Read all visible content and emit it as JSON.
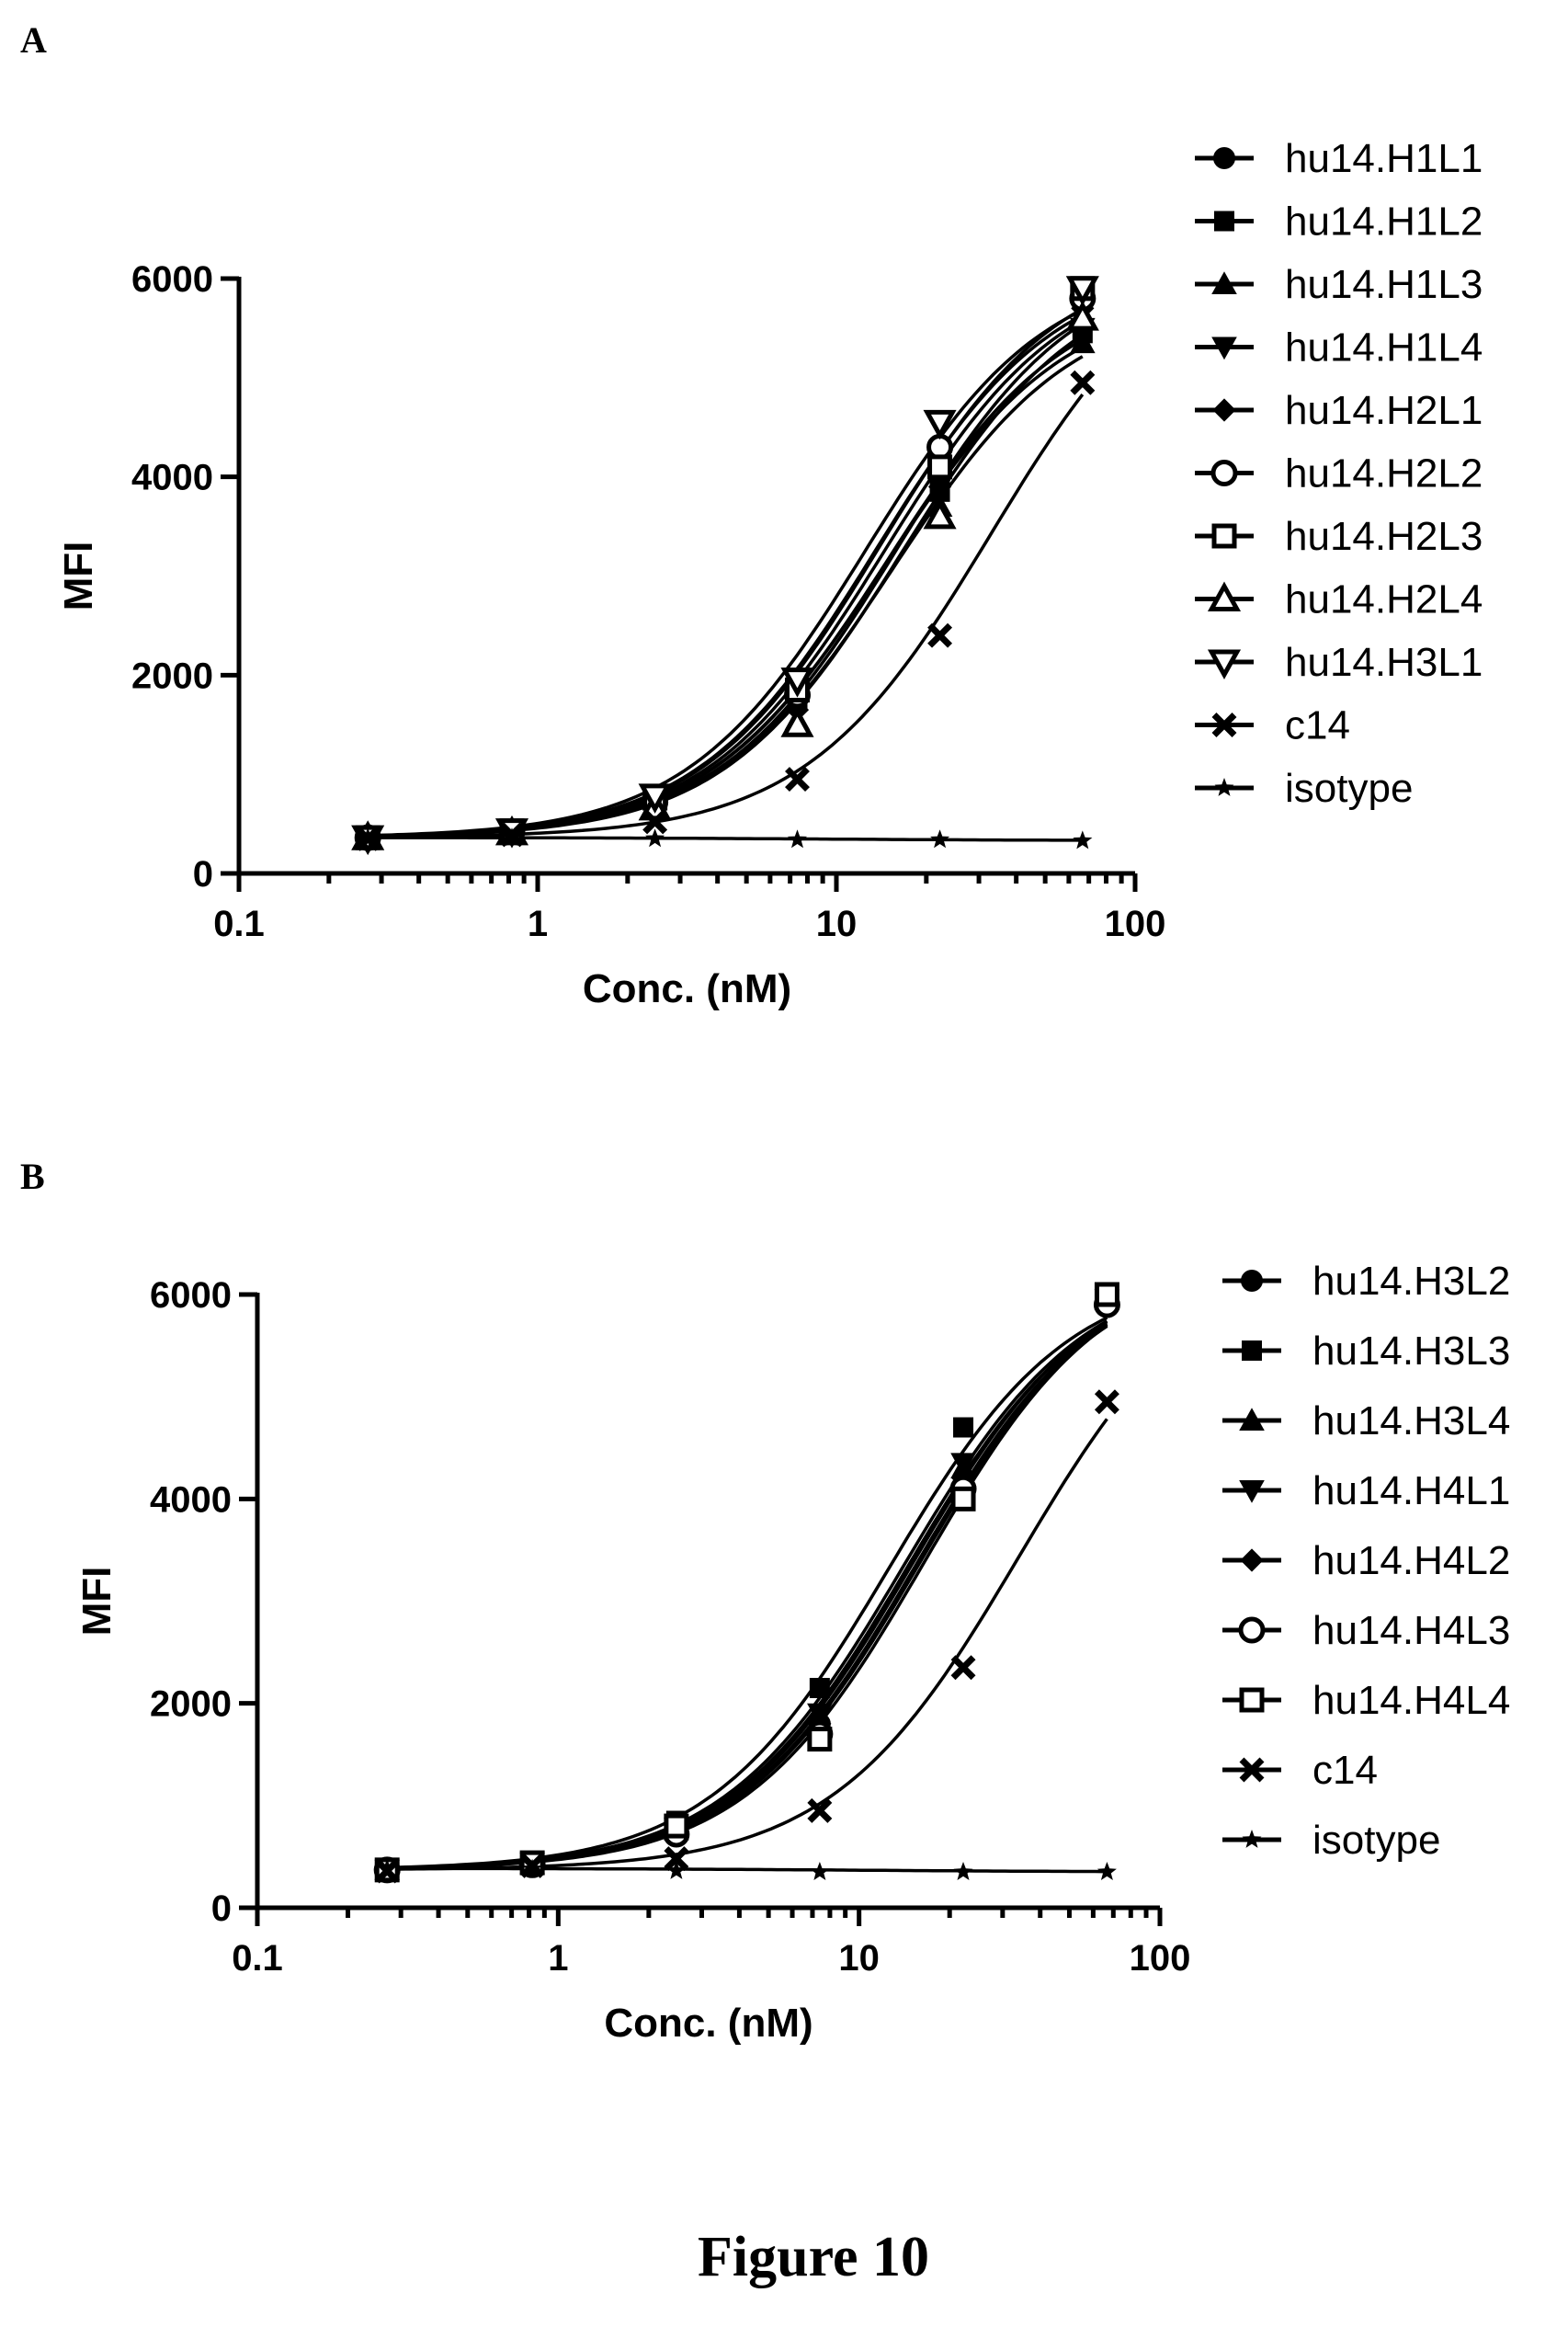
{
  "figure_caption": "Figure 10",
  "chart_data": [
    {
      "panel": "A",
      "type": "scatter",
      "xlabel": "Conc. (nM)",
      "ylabel": "MFI",
      "xscale": "log",
      "xlim": [
        0.1,
        100
      ],
      "ylim": [
        0,
        6000
      ],
      "xticks": [
        "0.1",
        "1",
        "10",
        "100"
      ],
      "yticks": [
        "0",
        "2000",
        "4000",
        "6000"
      ],
      "legend_position": "right",
      "x": [
        0.27,
        0.82,
        2.47,
        7.4,
        22.2,
        66.7
      ],
      "series": [
        {
          "name": "hu14.H1L1",
          "marker": "circle",
          "values": [
            360,
            420,
            700,
            1800,
            4000,
            5750
          ],
          "fit": {
            "bottom": 360,
            "top": 6150,
            "ec50": 14.5,
            "hill": 1.45
          }
        },
        {
          "name": "hu14.H1L2",
          "marker": "square",
          "values": [
            360,
            420,
            750,
            1750,
            3850,
            5450
          ],
          "fit": {
            "bottom": 360,
            "top": 5850,
            "ec50": 14.5,
            "hill": 1.45
          }
        },
        {
          "name": "hu14.H1L3",
          "marker": "triangle-up",
          "values": [
            360,
            410,
            680,
            1550,
            3700,
            5350
          ],
          "fit": {
            "bottom": 360,
            "top": 5800,
            "ec50": 15.5,
            "hill": 1.45
          }
        },
        {
          "name": "hu14.H1L4",
          "marker": "triangle-down",
          "values": [
            360,
            420,
            710,
            1700,
            3950,
            5500
          ],
          "fit": {
            "bottom": 360,
            "top": 5950,
            "ec50": 14.8,
            "hill": 1.45
          }
        },
        {
          "name": "hu14.H2L1",
          "marker": "diamond",
          "values": [
            360,
            410,
            680,
            1650,
            3900,
            5700
          ],
          "fit": {
            "bottom": 360,
            "top": 6200,
            "ec50": 16.0,
            "hill": 1.45
          }
        },
        {
          "name": "hu14.H2L2",
          "marker": "circle-open",
          "values": [
            360,
            420,
            720,
            1800,
            4300,
            5800
          ],
          "fit": {
            "bottom": 360,
            "top": 6150,
            "ec50": 13.5,
            "hill": 1.45
          }
        },
        {
          "name": "hu14.H2L3",
          "marker": "square-open",
          "values": [
            360,
            430,
            760,
            1850,
            4100,
            5900
          ],
          "fit": {
            "bottom": 360,
            "top": 6250,
            "ec50": 14.0,
            "hill": 1.45
          }
        },
        {
          "name": "hu14.H2L4",
          "marker": "triangle-up-open",
          "values": [
            360,
            410,
            660,
            1500,
            3600,
            5600
          ],
          "fit": {
            "bottom": 360,
            "top": 6100,
            "ec50": 16.5,
            "hill": 1.45
          }
        },
        {
          "name": "hu14.H3L1",
          "marker": "triangle-down-open",
          "values": [
            360,
            430,
            780,
            1950,
            4550,
            5900
          ],
          "fit": {
            "bottom": 360,
            "top": 6150,
            "ec50": 12.5,
            "hill": 1.45
          }
        },
        {
          "name": "c14",
          "marker": "x",
          "values": [
            350,
            390,
            520,
            950,
            2400,
            4950
          ],
          "fit": {
            "bottom": 360,
            "top": 6500,
            "ec50": 33.0,
            "hill": 1.4
          }
        },
        {
          "name": "isotype",
          "marker": "star",
          "values": [
            360,
            360,
            350,
            340,
            340,
            330
          ],
          "fit": {
            "bottom": 362,
            "top": 330,
            "ec50": 10,
            "hill": 1.0
          }
        }
      ]
    },
    {
      "panel": "B",
      "type": "scatter",
      "xlabel": "Conc. (nM)",
      "ylabel": "MFI",
      "xscale": "log",
      "xlim": [
        0.1,
        100
      ],
      "ylim": [
        0,
        6000
      ],
      "xticks": [
        "0.1",
        "1",
        "10",
        "100"
      ],
      "yticks": [
        "0",
        "2000",
        "4000",
        "6000"
      ],
      "legend_position": "right",
      "x": [
        0.27,
        0.82,
        2.47,
        7.4,
        22.2,
        66.7
      ],
      "series": [
        {
          "name": "hu14.H3L2",
          "marker": "circle",
          "values": [
            370,
            430,
            750,
            1800,
            4100,
            5900
          ],
          "fit": {
            "bottom": 370,
            "top": 6350,
            "ec50": 15.5,
            "hill": 1.45
          }
        },
        {
          "name": "hu14.H3L3",
          "marker": "square",
          "values": [
            370,
            450,
            850,
            2150,
            4700,
            6000
          ],
          "fit": {
            "bottom": 370,
            "top": 6250,
            "ec50": 12.5,
            "hill": 1.45
          }
        },
        {
          "name": "hu14.H3L4",
          "marker": "triangle-up",
          "values": [
            370,
            430,
            760,
            1800,
            4300,
            5950
          ],
          "fit": {
            "bottom": 370,
            "top": 6300,
            "ec50": 14.5,
            "hill": 1.45
          }
        },
        {
          "name": "hu14.H4L1",
          "marker": "triangle-down",
          "values": [
            370,
            440,
            780,
            1900,
            4350,
            5950
          ],
          "fit": {
            "bottom": 370,
            "top": 6300,
            "ec50": 14.0,
            "hill": 1.45
          }
        },
        {
          "name": "hu14.H4L2",
          "marker": "diamond",
          "values": [
            370,
            430,
            760,
            1800,
            4200,
            5950
          ],
          "fit": {
            "bottom": 370,
            "top": 6350,
            "ec50": 15.0,
            "hill": 1.45
          }
        },
        {
          "name": "hu14.H4L3",
          "marker": "circle-open",
          "values": [
            370,
            420,
            720,
            1700,
            4100,
            5900
          ],
          "fit": {
            "bottom": 370,
            "top": 6350,
            "ec50": 15.8,
            "hill": 1.45
          }
        },
        {
          "name": "hu14.H4L4",
          "marker": "square-open",
          "values": [
            370,
            440,
            800,
            1650,
            4000,
            6000
          ],
          "fit": {
            "bottom": 370,
            "top": 6400,
            "ec50": 16.5,
            "hill": 1.45
          }
        },
        {
          "name": "c14",
          "marker": "x",
          "values": [
            360,
            410,
            480,
            950,
            2350,
            4950
          ],
          "fit": {
            "bottom": 370,
            "top": 6500,
            "ec50": 34.0,
            "hill": 1.4
          }
        },
        {
          "name": "isotype",
          "marker": "star",
          "values": [
            380,
            380,
            360,
            350,
            350,
            350
          ],
          "fit": {
            "bottom": 385,
            "top": 350,
            "ec50": 10,
            "hill": 1.0
          }
        }
      ]
    }
  ]
}
